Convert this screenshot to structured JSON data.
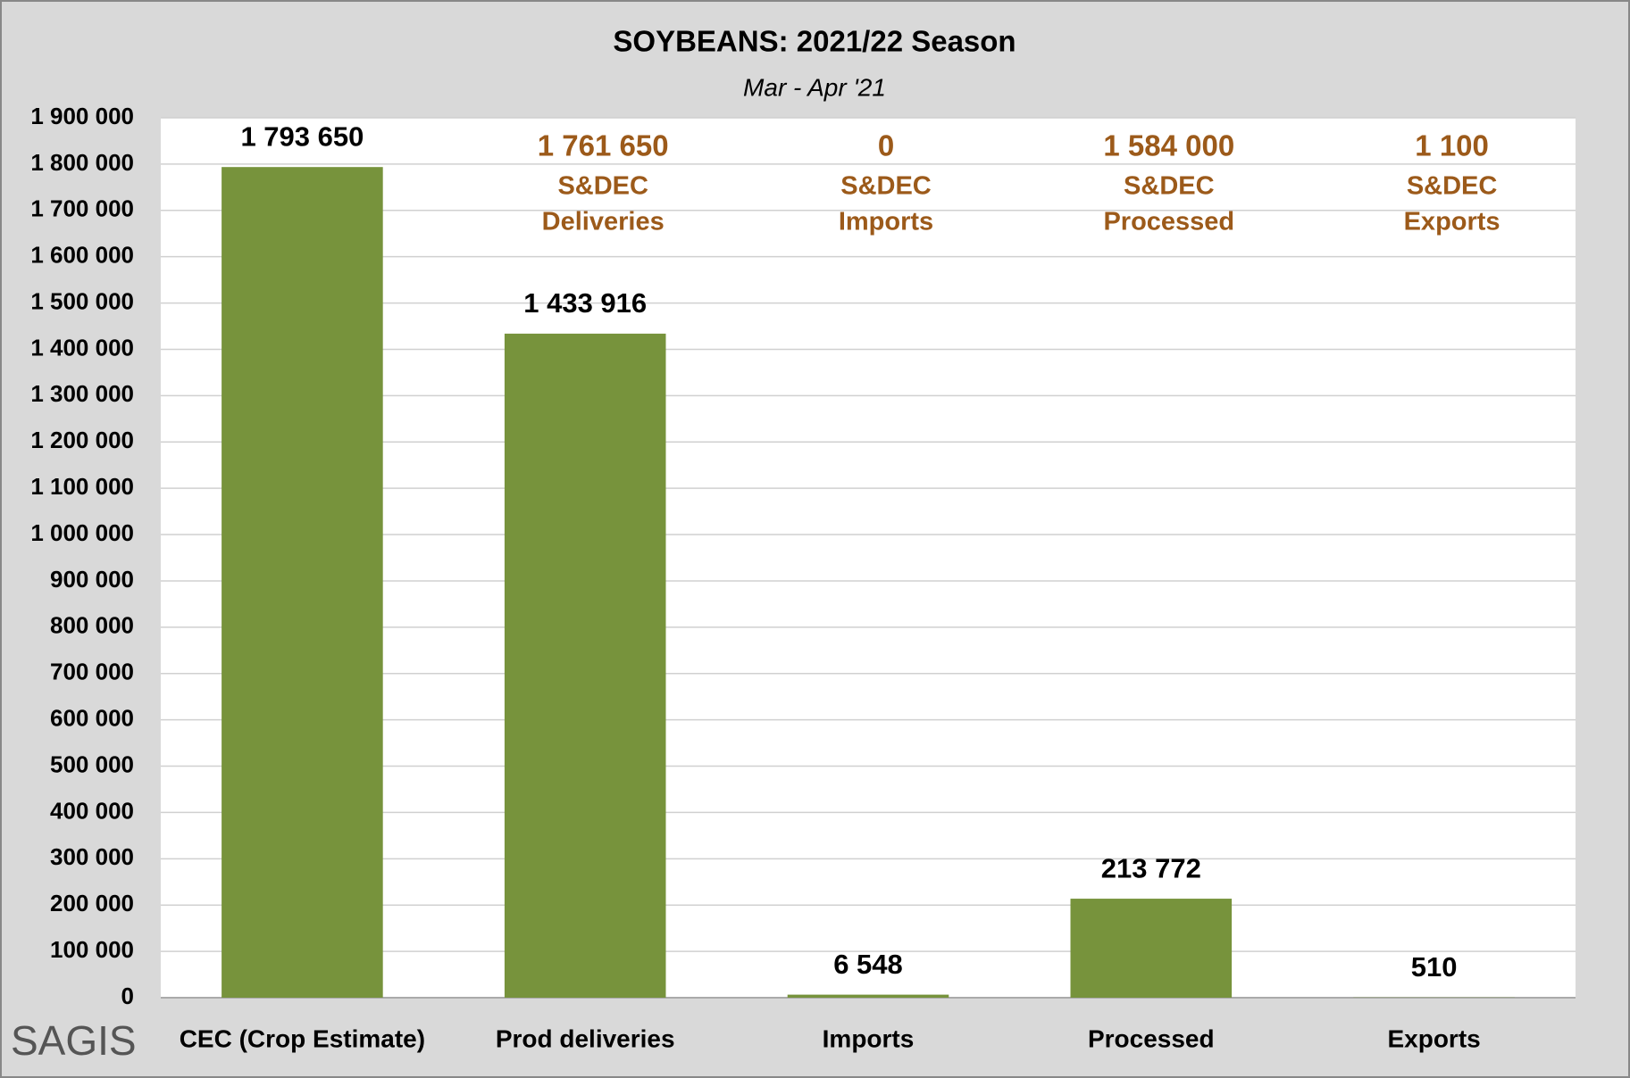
{
  "chart_data": {
    "type": "bar",
    "title": "SOYBEANS: 2021/22 Season",
    "subtitle": "Mar - Apr '21",
    "categories": [
      "CEC (Crop Estimate)",
      "Prod deliveries",
      "Imports",
      "Processed",
      "Exports"
    ],
    "values": [
      1793650,
      1433916,
      6548,
      213772,
      510
    ],
    "value_labels": [
      "1 793 650",
      "1 433 916",
      "6 548",
      "213 772",
      "510"
    ],
    "color": "#77933c",
    "ylim": [
      0,
      1900000
    ],
    "yticks": [
      0,
      {
        "value": 100000,
        "label": "100 000"
      },
      {
        "value": 200000,
        "label": "200 000"
      },
      {
        "value": 300000,
        "label": "300 000"
      },
      {
        "value": 400000,
        "label": "400 000"
      },
      {
        "value": 500000,
        "label": "500 000"
      },
      {
        "value": 600000,
        "label": "600 000"
      },
      {
        "value": 700000,
        "label": "700 000"
      },
      {
        "value": 800000,
        "label": "800 000"
      },
      {
        "value": 900000,
        "label": "900 000"
      },
      {
        "value": 1000000,
        "label": "1 000 000"
      },
      {
        "value": 1100000,
        "label": "1 100 000"
      },
      {
        "value": 1200000,
        "label": "1 200 000"
      },
      {
        "value": 1300000,
        "label": "1 300 000"
      },
      {
        "value": 1400000,
        "label": "1 400 000"
      },
      {
        "value": 1500000,
        "label": "1 500 000"
      },
      {
        "value": 1600000,
        "label": "1 600 000"
      },
      {
        "value": 1700000,
        "label": "1 700 000"
      },
      {
        "value": 1800000,
        "label": "1 800 000"
      },
      {
        "value": 1900000,
        "label": "1 900 000"
      }
    ],
    "grid": true,
    "annotations": [
      {
        "category": 1,
        "lines": [
          "1 761 650",
          "S&DEC",
          "Deliveries"
        ]
      },
      {
        "category": 2,
        "lines": [
          "0",
          "S&DEC",
          "Imports"
        ]
      },
      {
        "category": 3,
        "lines": [
          "1 584 000",
          "S&DEC",
          "Processed"
        ]
      },
      {
        "category": 4,
        "lines": [
          "1 100",
          "S&DEC",
          "Exports"
        ]
      }
    ],
    "annotation_color": "#9c5a1a"
  },
  "logo": "SAGIS"
}
